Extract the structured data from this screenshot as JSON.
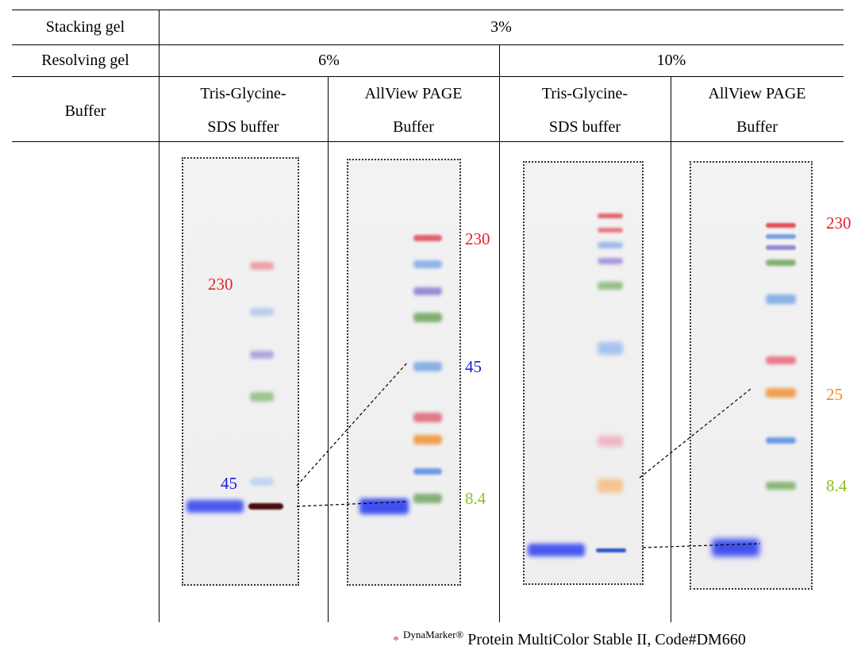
{
  "table": {
    "stacking_label": "Stacking gel",
    "stacking_value": "3%",
    "resolving_label": "Resolving gel",
    "resolving_values": [
      "6%",
      "10%"
    ],
    "buffer_label": "Buffer",
    "buffers": [
      {
        "line1": "Tris-Glycine-",
        "line2": "SDS buffer"
      },
      {
        "line1": "AllView PAGE",
        "line2": "Buffer"
      },
      {
        "line1": "Tris-Glycine-",
        "line2": "SDS buffer"
      },
      {
        "line1": "AllView PAGE",
        "line2": "Buffer"
      }
    ]
  },
  "gels": [
    {
      "labels": [
        {
          "text": "230",
          "color": "#e8202a"
        },
        {
          "text": "45",
          "color": "#1a1ae0"
        }
      ]
    },
    {
      "labels": [
        {
          "text": "230",
          "color": "#e8202a"
        },
        {
          "text": "45",
          "color": "#1a1ae0"
        },
        {
          "text": "8.4",
          "color": "#8cc020"
        }
      ]
    },
    {
      "labels": []
    },
    {
      "labels": [
        {
          "text": "230",
          "color": "#e8202a"
        },
        {
          "text": "25",
          "color": "#f08a28"
        },
        {
          "text": "8.4",
          "color": "#8cc020"
        }
      ]
    }
  ],
  "marker_colors": {
    "red": "#e0505a",
    "blue": "#7aa8e0",
    "purple": "#9a88d0",
    "green": "#80b070",
    "orange": "#f0a050",
    "sample_blue": "#3a4af0",
    "dark": "#5a1010"
  },
  "footnote": {
    "star": "*",
    "brand": "DynaMarker®",
    "text": "Protein MultiColor Stable II, Code#DM660"
  }
}
